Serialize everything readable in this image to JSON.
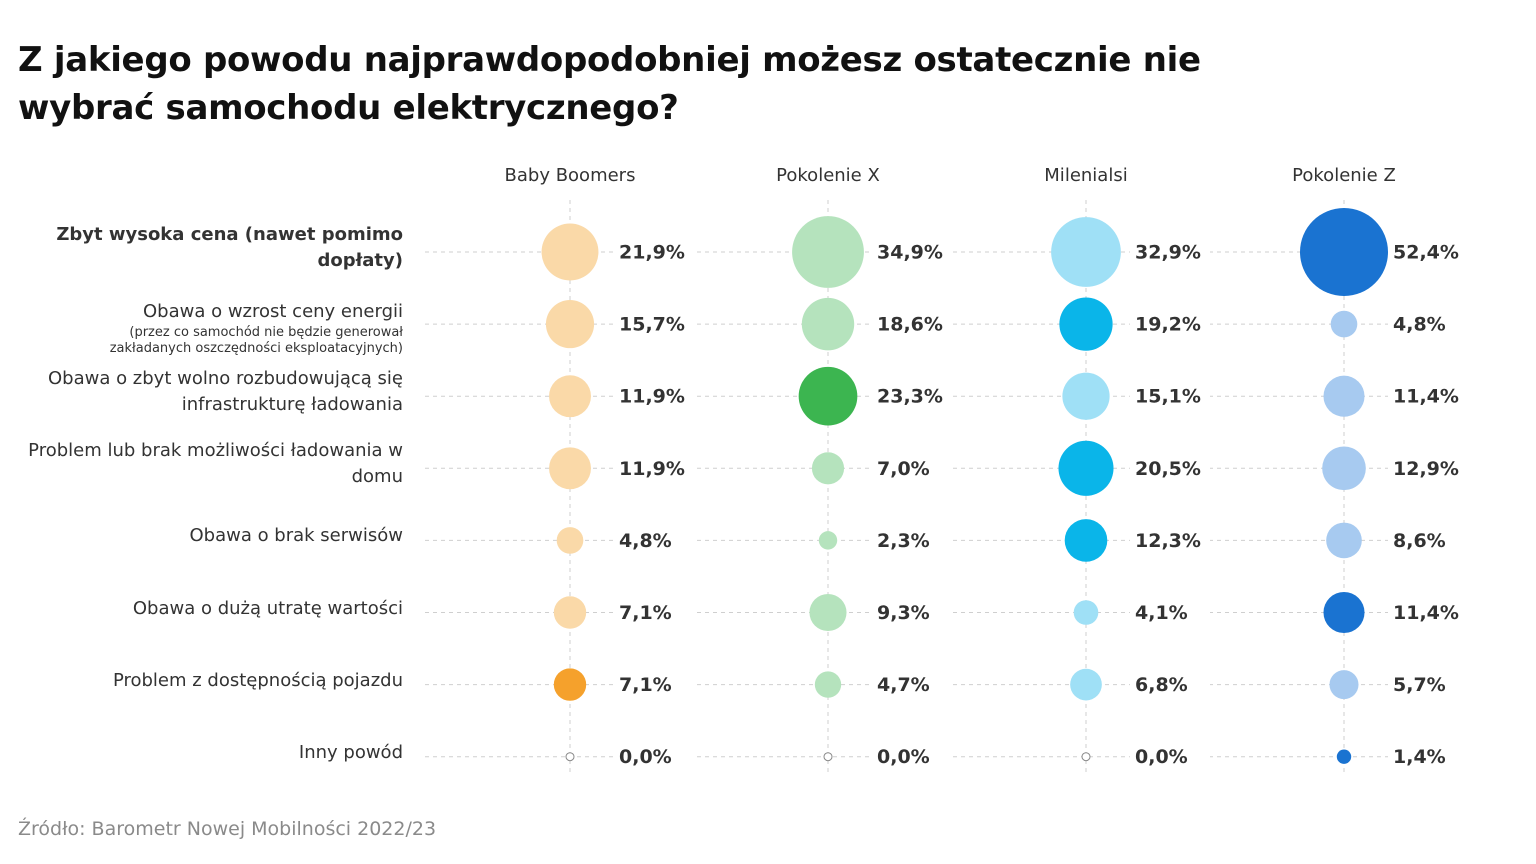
{
  "chart_data": {
    "type": "bubble",
    "title": "Z jakiego powodu najprawdopodobniej możesz ostatecznie nie wybrać samochodu elektrycznego?",
    "source": "Źródło: Barometr Nowej Mobilności 2022/23",
    "categories": [
      "Zbyt wysoka cena (nawet pomimo dopłaty)",
      "Obawa o wzrost ceny energii",
      "Obawa o zbyt wolno rozbudowującą się infrastrukturę ładowania",
      "Problem lub brak możliwości ładowania w domu",
      "Obawa o brak serwisów",
      "Obawa o dużą utratę wartości",
      "Problem z dostępnością pojazdu",
      "Inny powód"
    ],
    "category_notes": [
      null,
      "(przez co samochód nie będzie generował zakładanych oszczędności eksploatacyjnych)",
      null,
      null,
      null,
      null,
      null,
      null
    ],
    "bold_categories": [
      true,
      false,
      false,
      false,
      false,
      false,
      false,
      false
    ],
    "series": [
      {
        "name": "Baby Boomers",
        "color": "#fad9a8",
        "colors": [
          "#fad9a8",
          "#fad9a8",
          "#fad9a8",
          "#fad9a8",
          "#fad9a8",
          "#fad9a8",
          "#f5a12c",
          "#fad9a8"
        ],
        "values": [
          21.9,
          15.7,
          11.9,
          11.9,
          4.8,
          7.1,
          7.1,
          0.0
        ],
        "value_labels": [
          "21,9%",
          "15,7%",
          "11,9%",
          "11,9%",
          "4,8%",
          "7,1%",
          "7,1%",
          "0,0%"
        ]
      },
      {
        "name": "Pokolenie X",
        "color": "#b5e3bd",
        "colors": [
          "#b5e3bd",
          "#b5e3bd",
          "#3cb550",
          "#b5e3bd",
          "#b5e3bd",
          "#b5e3bd",
          "#b5e3bd",
          "#b5e3bd"
        ],
        "values": [
          34.9,
          18.6,
          23.3,
          7.0,
          2.3,
          9.3,
          4.7,
          0.0
        ],
        "value_labels": [
          "34,9%",
          "18,6%",
          "23,3%",
          "7,0%",
          "2,3%",
          "9,3%",
          "4,7%",
          "0,0%"
        ]
      },
      {
        "name": "Milenialsi",
        "color": "#9fe0f6",
        "colors": [
          "#9fe0f6",
          "#0ab5e9",
          "#9fe0f6",
          "#0ab5e9",
          "#0ab5e9",
          "#9fe0f6",
          "#9fe0f6",
          "#9fe0f6"
        ],
        "values": [
          32.9,
          19.2,
          15.1,
          20.5,
          12.3,
          4.1,
          6.8,
          0.0
        ],
        "value_labels": [
          "32,9%",
          "19,2%",
          "15,1%",
          "20,5%",
          "12,3%",
          "4,1%",
          "6,8%",
          "0,0%"
        ]
      },
      {
        "name": "Pokolenie Z",
        "color": "#a7caf0",
        "colors": [
          "#1a73d1",
          "#a7caf0",
          "#a7caf0",
          "#a7caf0",
          "#a7caf0",
          "#1a73d1",
          "#a7caf0",
          "#1a73d1"
        ],
        "values": [
          52.4,
          4.8,
          11.4,
          12.9,
          8.6,
          11.4,
          5.7,
          1.4
        ],
        "value_labels": [
          "52,4%",
          "4,8%",
          "11,4%",
          "12,9%",
          "8,6%",
          "11,4%",
          "5,7%",
          "1,4%"
        ]
      }
    ]
  }
}
